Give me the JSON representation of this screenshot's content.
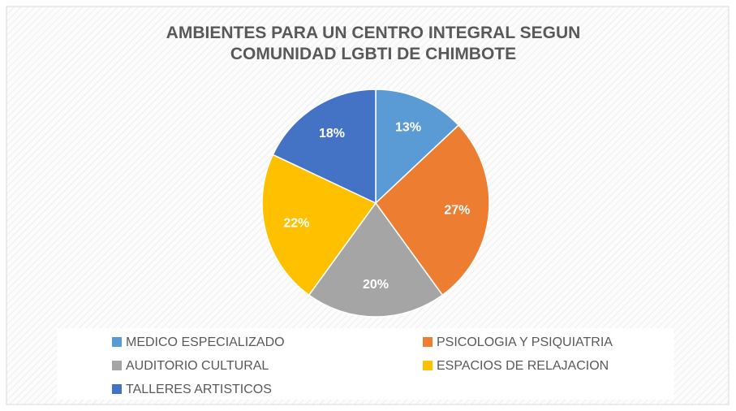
{
  "chart_data": {
    "type": "pie",
    "title": "AMBIENTES PARA UN CENTRO INTEGRAL SEGUN COMUNIDAD LGBTI DE CHIMBOTE",
    "categories": [
      "MEDICO ESPECIALIZADO",
      "PSICOLOGIA Y PSIQUIATRIA",
      "AUDITORIO CULTURAL",
      "ESPACIOS DE RELAJACION",
      "TALLERES ARTISTICOS"
    ],
    "values": [
      13,
      27,
      20,
      22,
      18
    ],
    "value_labels": [
      "13%",
      "27%",
      "20%",
      "22%",
      "18%"
    ],
    "colors": [
      "#5b9bd5",
      "#ed7d31",
      "#a5a5a5",
      "#ffc000",
      "#4472c4"
    ],
    "legend": "bottom"
  }
}
